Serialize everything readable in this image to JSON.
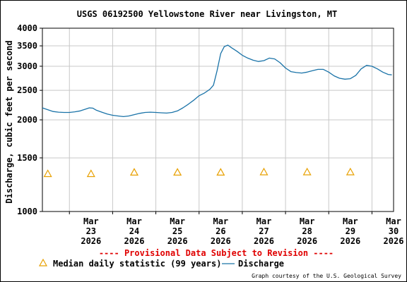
{
  "chart_data": {
    "type": "line",
    "title": "USGS 06192500 Yellowstone River near Livingston, MT",
    "ylabel": "Discharge, cubic feet per second",
    "xlabel": "",
    "yscale": "log",
    "ylim": [
      1000,
      4000
    ],
    "y_ticks": [
      1000,
      1500,
      2000,
      2500,
      3000,
      3500,
      4000
    ],
    "y_tick_labels": [
      "1000",
      "1500",
      "2000",
      "2500",
      "3000",
      "3500",
      "4000"
    ],
    "xlim": [
      "2026-03-22T09:00",
      "2026-03-30T12:00"
    ],
    "x_ticks": [
      {
        "date": "2026-03-23",
        "label": [
          "Mar",
          "23",
          "2026"
        ]
      },
      {
        "date": "2026-03-24",
        "label": [
          "Mar",
          "24",
          "2026"
        ]
      },
      {
        "date": "2026-03-25",
        "label": [
          "Mar",
          "25",
          "2026"
        ]
      },
      {
        "date": "2026-03-26",
        "label": [
          "Mar",
          "26",
          "2026"
        ]
      },
      {
        "date": "2026-03-27",
        "label": [
          "Mar",
          "27",
          "2026"
        ]
      },
      {
        "date": "2026-03-28",
        "label": [
          "Mar",
          "28",
          "2026"
        ]
      },
      {
        "date": "2026-03-29",
        "label": [
          "Mar",
          "29",
          "2026"
        ]
      },
      {
        "date": "2026-03-30",
        "label": [
          "Mar",
          "30",
          "2026"
        ]
      }
    ],
    "grid": true,
    "legend_position": "bottom",
    "series": [
      {
        "name": "Discharge",
        "color": "#1a73a8",
        "points": [
          [
            "2026-03-22T09:00",
            2190
          ],
          [
            "2026-03-22T12:00",
            2160
          ],
          [
            "2026-03-22T15:00",
            2130
          ],
          [
            "2026-03-22T18:00",
            2120
          ],
          [
            "2026-03-22T21:00",
            2115
          ],
          [
            "2026-03-23T00:00",
            2115
          ],
          [
            "2026-03-23T03:00",
            2125
          ],
          [
            "2026-03-23T06:00",
            2140
          ],
          [
            "2026-03-23T09:00",
            2170
          ],
          [
            "2026-03-23T11:00",
            2190
          ],
          [
            "2026-03-23T13:00",
            2185
          ],
          [
            "2026-03-23T15:00",
            2150
          ],
          [
            "2026-03-23T18:00",
            2120
          ],
          [
            "2026-03-23T21:00",
            2090
          ],
          [
            "2026-03-24T00:00",
            2070
          ],
          [
            "2026-03-24T03:00",
            2060
          ],
          [
            "2026-03-24T06:00",
            2050
          ],
          [
            "2026-03-24T09:00",
            2060
          ],
          [
            "2026-03-24T12:00",
            2080
          ],
          [
            "2026-03-24T15:00",
            2100
          ],
          [
            "2026-03-24T18:00",
            2115
          ],
          [
            "2026-03-24T21:00",
            2120
          ],
          [
            "2026-03-25T00:00",
            2115
          ],
          [
            "2026-03-25T03:00",
            2110
          ],
          [
            "2026-03-25T06:00",
            2105
          ],
          [
            "2026-03-25T09:00",
            2115
          ],
          [
            "2026-03-25T12:00",
            2140
          ],
          [
            "2026-03-25T15:00",
            2190
          ],
          [
            "2026-03-25T18:00",
            2250
          ],
          [
            "2026-03-25T21:00",
            2320
          ],
          [
            "2026-03-26T00:00",
            2400
          ],
          [
            "2026-03-26T03:00",
            2450
          ],
          [
            "2026-03-26T06:00",
            2520
          ],
          [
            "2026-03-26T08:00",
            2600
          ],
          [
            "2026-03-26T10:00",
            2900
          ],
          [
            "2026-03-26T12:00",
            3300
          ],
          [
            "2026-03-26T14:00",
            3480
          ],
          [
            "2026-03-26T16:00",
            3520
          ],
          [
            "2026-03-26T18:00",
            3450
          ],
          [
            "2026-03-26T21:00",
            3360
          ],
          [
            "2026-03-27T00:00",
            3260
          ],
          [
            "2026-03-27T03:00",
            3190
          ],
          [
            "2026-03-27T06:00",
            3140
          ],
          [
            "2026-03-27T09:00",
            3110
          ],
          [
            "2026-03-27T12:00",
            3130
          ],
          [
            "2026-03-27T15:00",
            3190
          ],
          [
            "2026-03-27T18:00",
            3170
          ],
          [
            "2026-03-27T21:00",
            3080
          ],
          [
            "2026-03-28T00:00",
            2960
          ],
          [
            "2026-03-28T03:00",
            2880
          ],
          [
            "2026-03-28T06:00",
            2860
          ],
          [
            "2026-03-28T09:00",
            2850
          ],
          [
            "2026-03-28T12:00",
            2870
          ],
          [
            "2026-03-28T15:00",
            2900
          ],
          [
            "2026-03-28T18:00",
            2930
          ],
          [
            "2026-03-28T21:00",
            2930
          ],
          [
            "2026-03-29T00:00",
            2870
          ],
          [
            "2026-03-29T03:00",
            2790
          ],
          [
            "2026-03-29T06:00",
            2740
          ],
          [
            "2026-03-29T09:00",
            2720
          ],
          [
            "2026-03-29T12:00",
            2730
          ],
          [
            "2026-03-29T15:00",
            2800
          ],
          [
            "2026-03-29T18:00",
            2940
          ],
          [
            "2026-03-29T21:00",
            3020
          ],
          [
            "2026-03-30T00:00",
            3000
          ],
          [
            "2026-03-30T03:00",
            2940
          ],
          [
            "2026-03-30T06:00",
            2870
          ],
          [
            "2026-03-30T09:00",
            2820
          ],
          [
            "2026-03-30T11:00",
            2810
          ]
        ]
      },
      {
        "name": "Median daily statistic (99 years)",
        "color": "#e8a000",
        "marker": "triangle",
        "points": [
          [
            "2026-03-22T12:00",
            1330
          ],
          [
            "2026-03-23T12:00",
            1330
          ],
          [
            "2026-03-24T12:00",
            1345
          ],
          [
            "2026-03-25T12:00",
            1345
          ],
          [
            "2026-03-26T12:00",
            1345
          ],
          [
            "2026-03-27T12:00",
            1348
          ],
          [
            "2026-03-28T12:00",
            1348
          ],
          [
            "2026-03-29T12:00",
            1348
          ]
        ]
      }
    ],
    "annotations": [
      "---- Provisional Data Subject to Revision ----"
    ],
    "credit": "Graph courtesy of the U.S. Geological Survey"
  }
}
